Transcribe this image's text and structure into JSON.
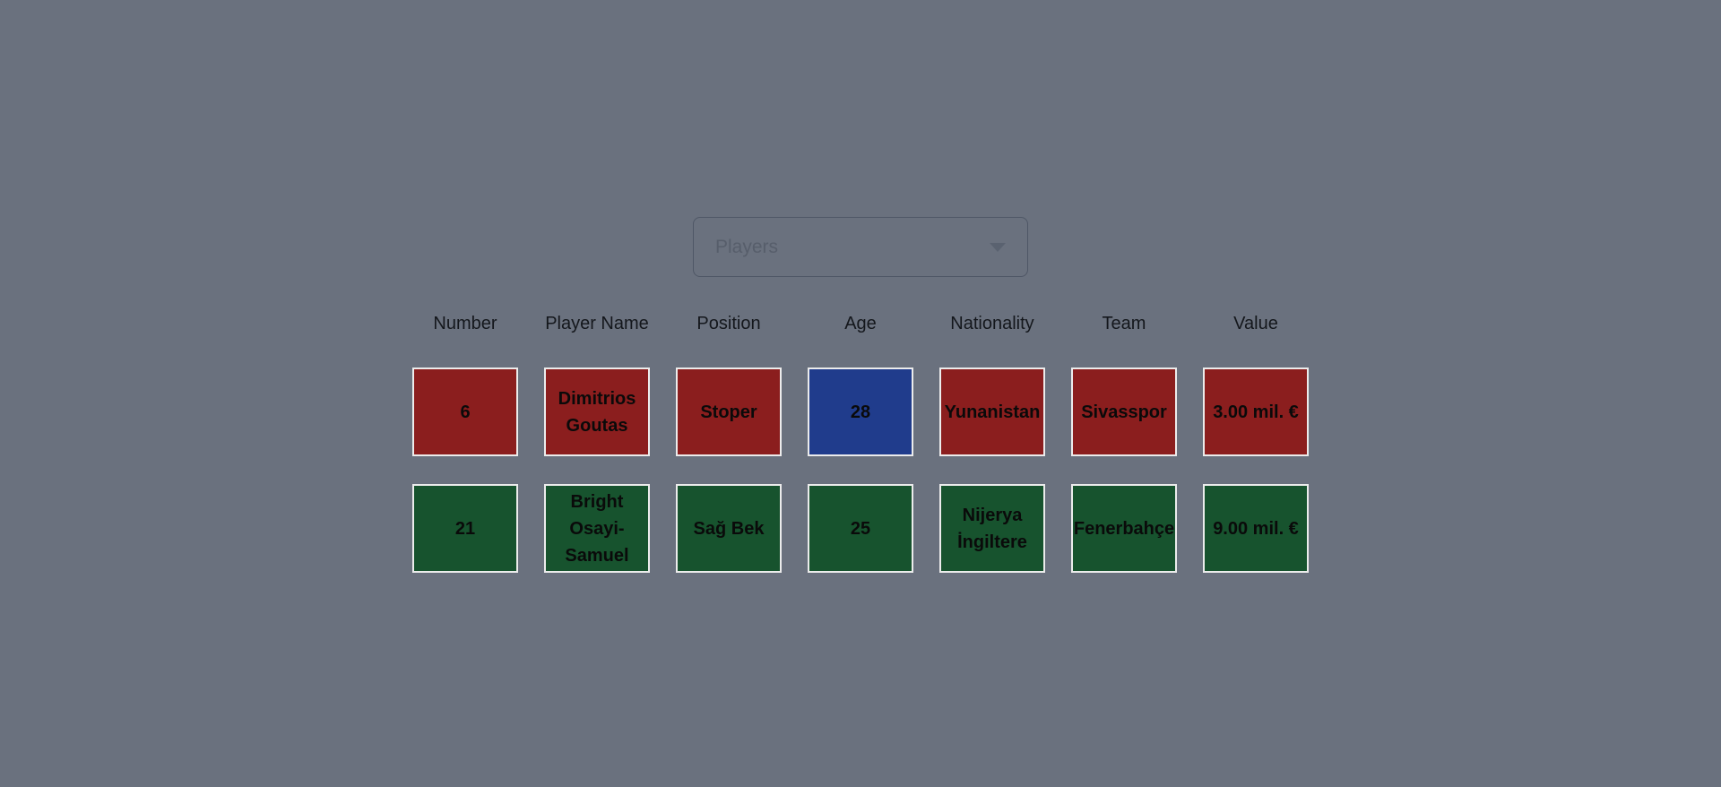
{
  "colors": {
    "background": "#6A717E",
    "red": "#8B1E1E",
    "green": "#17532E",
    "blue": "#203C8C",
    "cell_border": "#ECECEC",
    "cell_text": "#0A0A0A",
    "dropdown_border": "#4F5766",
    "dropdown_text": "#575E6B"
  },
  "dropdown": {
    "label": "Players",
    "caret_icon": "caret-down-icon"
  },
  "table": {
    "columns": [
      "Number",
      "Player Name",
      "Position",
      "Age",
      "Nationality",
      "Team",
      "Value"
    ],
    "rows": [
      {
        "cells": [
          "6",
          "Dimitrios Goutas",
          "Stoper",
          "28",
          "Yunanistan",
          "Sivasspor",
          "3.00 mil. €"
        ],
        "cell_colors": [
          "#8B1E1E",
          "#8B1E1E",
          "#8B1E1E",
          "#203C8C",
          "#8B1E1E",
          "#8B1E1E",
          "#8B1E1E"
        ]
      },
      {
        "cells": [
          "21",
          "Bright Osayi-Samuel",
          "Sağ Bek",
          "25",
          "Nijerya İngiltere",
          "Fenerbahçe",
          "9.00 mil. €"
        ],
        "cell_colors": [
          "#17532E",
          "#17532E",
          "#17532E",
          "#17532E",
          "#17532E",
          "#17532E",
          "#17532E"
        ]
      }
    ]
  }
}
